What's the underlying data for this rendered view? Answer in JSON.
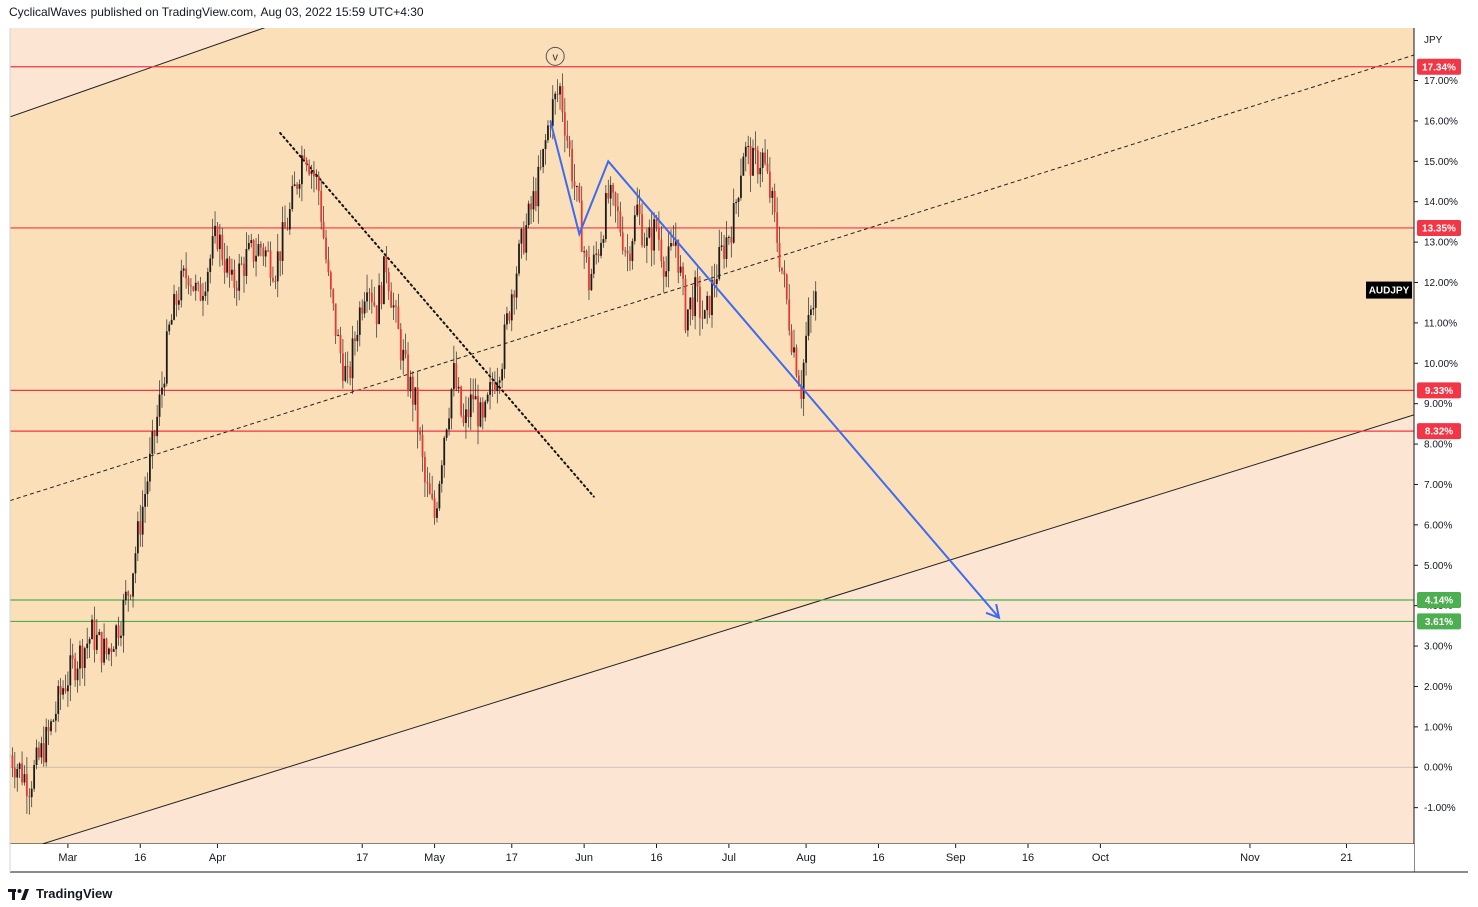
{
  "header": {
    "author": "CyclicalWaves",
    "published_text": "published on TradingView.com,",
    "timestamp": "Aug 03, 2022 15:59 UTC+4:30"
  },
  "footer": {
    "brand": "TradingView",
    "logo_icon": "tradingview-logo-icon"
  },
  "chart_data": {
    "type": "line",
    "symbol": "AUDJPY",
    "unit_label": "JPY",
    "y_scale": "percent",
    "ylim": [
      -1.9,
      18.3
    ],
    "y_ticks": [
      "-1.00%",
      "0.00%",
      "1.00%",
      "2.00%",
      "3.00%",
      "4.00%",
      "5.00%",
      "6.00%",
      "7.00%",
      "8.00%",
      "9.00%",
      "10.00%",
      "11.00%",
      "12.00%",
      "13.00%",
      "14.00%",
      "15.00%",
      "16.00%",
      "17.00%"
    ],
    "y_tick_values": [
      -1,
      0,
      1,
      2,
      3,
      4,
      5,
      6,
      7,
      8,
      9,
      10,
      11,
      12,
      13,
      14,
      15,
      16,
      17
    ],
    "x_tick_labels": [
      "Mar",
      "16",
      "Apr",
      "17",
      "May",
      "17",
      "Jun",
      "16",
      "Jul",
      "Aug",
      "16",
      "Sep",
      "16",
      "Oct",
      "Nov",
      "21"
    ],
    "x_tick_days": [
      0,
      15,
      31,
      61,
      76,
      92,
      107,
      122,
      137,
      153,
      168,
      184,
      199,
      214,
      245,
      265
    ],
    "xlim_days": [
      -12,
      279
    ],
    "price_series_percent": {
      "days": [
        -12,
        -8,
        -4,
        -1,
        2,
        5,
        8,
        11,
        13,
        15,
        17,
        19,
        21,
        23,
        25,
        27,
        29,
        31,
        34,
        37,
        40,
        43,
        46,
        49,
        52,
        54,
        56,
        58,
        60,
        62,
        64,
        66,
        68,
        70,
        72,
        74,
        76,
        78,
        80,
        82,
        84,
        86,
        88,
        90,
        92,
        94,
        96,
        98,
        100,
        102,
        104,
        106,
        108,
        110,
        112,
        114,
        116,
        118,
        120,
        122,
        124,
        126,
        128,
        130,
        132,
        134,
        136,
        138,
        140,
        142,
        144,
        146,
        148,
        150,
        152,
        153,
        154,
        155
      ],
      "values": [
        0.3,
        -0.4,
        0.8,
        2.0,
        2.7,
        3.3,
        2.8,
        3.7,
        4.6,
        6.1,
        7.5,
        9.0,
        10.8,
        11.8,
        12.3,
        11.6,
        12.4,
        13.2,
        11.9,
        12.6,
        12.9,
        12.4,
        13.7,
        15.4,
        14.3,
        12.0,
        10.5,
        9.5,
        11.0,
        12.2,
        11.3,
        12.5,
        11.0,
        9.8,
        9.0,
        7.0,
        6.2,
        8.3,
        9.7,
        8.4,
        9.2,
        8.4,
        9.5,
        10.2,
        11.8,
        12.9,
        13.8,
        14.7,
        16.2,
        16.8,
        15.2,
        13.6,
        12.0,
        12.9,
        14.1,
        13.6,
        12.7,
        13.8,
        12.9,
        13.4,
        12.3,
        13.1,
        11.2,
        11.7,
        11.0,
        12.1,
        12.9,
        13.6,
        15.3,
        14.9,
        15.1,
        13.9,
        12.3,
        10.7,
        9.4,
        10.6,
        11.2,
        11.6
      ]
    },
    "current_label": "AUDJPY",
    "horizontal_levels": [
      {
        "label": "17.34%",
        "value": 17.34,
        "color": "#f23645"
      },
      {
        "label": "13.35%",
        "value": 13.35,
        "color": "#f23645"
      },
      {
        "label": "9.33%",
        "value": 9.33,
        "color": "#f23645"
      },
      {
        "label": "8.32%",
        "value": 8.32,
        "color": "#f23645"
      },
      {
        "label": "4.14%",
        "value": 4.14,
        "color": "#4caf50"
      },
      {
        "label": "3.61%",
        "value": 3.61,
        "color": "#4caf50"
      }
    ],
    "wave_label": "v",
    "wave_point": {
      "day": 101,
      "value": 17.5
    },
    "channel": {
      "upper": {
        "from": {
          "day": -12,
          "value": 16.1
        },
        "to": {
          "day": 43,
          "value": 18.4
        }
      },
      "lower": {
        "from": {
          "day": -8,
          "value": -2.0
        },
        "to": {
          "day": 265,
          "value": 8.2
        }
      },
      "mid": {
        "from": {
          "day": -12,
          "value": 6.6
        },
        "to": {
          "day": 265,
          "value": 17.1
        }
      }
    },
    "dotted_trendline": {
      "from": {
        "day": 44,
        "value": 15.7
      },
      "to": {
        "day": 109,
        "value": 6.7
      }
    },
    "projection_path": [
      {
        "day": 100,
        "value": 16.0
      },
      {
        "day": 106,
        "value": 13.2
      },
      {
        "day": 112,
        "value": 15.0
      },
      {
        "day": 193,
        "value": 3.7
      }
    ],
    "colors": {
      "zone_inner": "#fbdfb8",
      "zone_outer": "#fce6d3",
      "candles": "#e53935",
      "wicks": "#2a2a2a",
      "projection": "#3d6bf0",
      "axis_text": "#131722"
    }
  }
}
